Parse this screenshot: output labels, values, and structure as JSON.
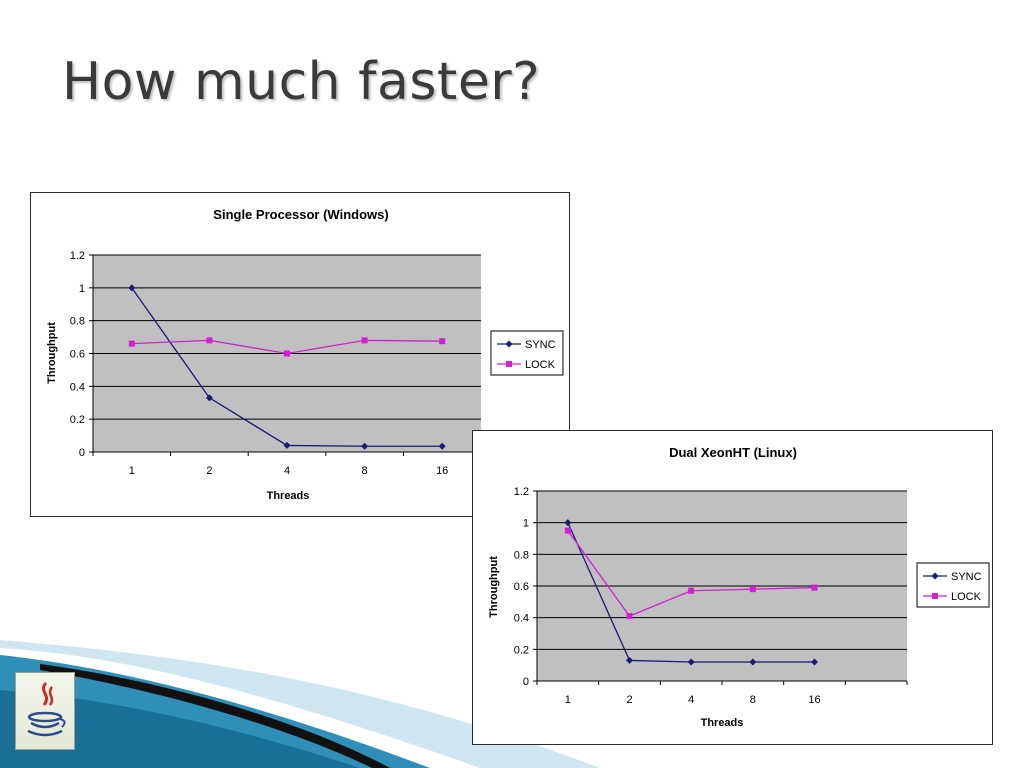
{
  "slide": {
    "title": "How much faster?"
  },
  "logo": {
    "icon": "java-coffee-cup-icon"
  },
  "colors": {
    "sync": "#1a1a7a",
    "lock": "#d21fd2",
    "plot_bg": "#c0c0c0",
    "grid": "#000000"
  },
  "chart_data": [
    {
      "type": "line",
      "title": "Single Processor (Windows)",
      "xlabel": "Threads",
      "ylabel": "Throughput",
      "categories": [
        "1",
        "2",
        "4",
        "8",
        "16"
      ],
      "ylim": [
        0,
        1.2
      ],
      "yticks": [
        "0",
        "0.2",
        "0.4",
        "0.6",
        "0.8",
        "1",
        "1.2"
      ],
      "grid": true,
      "legend": "right",
      "series": [
        {
          "name": "SYNC",
          "marker": "diamond",
          "values": [
            1.0,
            0.33,
            0.04,
            0.035,
            0.035
          ]
        },
        {
          "name": "LOCK",
          "marker": "square",
          "values": [
            0.66,
            0.68,
            0.6,
            0.68,
            0.675
          ]
        }
      ]
    },
    {
      "type": "line",
      "title": "Dual XeonHT (Linux)",
      "xlabel": "Threads",
      "ylabel": "Throughput",
      "categories": [
        "1",
        "2",
        "4",
        "8",
        "16"
      ],
      "ylim": [
        0,
        1.2
      ],
      "yticks": [
        "0",
        "0.2",
        "0.4",
        "0.6",
        "0.8",
        "1",
        "1.2"
      ],
      "grid": true,
      "legend": "right",
      "series": [
        {
          "name": "SYNC",
          "marker": "diamond",
          "values": [
            1.0,
            0.13,
            0.12,
            0.12,
            0.12
          ]
        },
        {
          "name": "LOCK",
          "marker": "square",
          "values": [
            0.95,
            0.41,
            0.57,
            0.58,
            0.59
          ]
        }
      ]
    }
  ]
}
